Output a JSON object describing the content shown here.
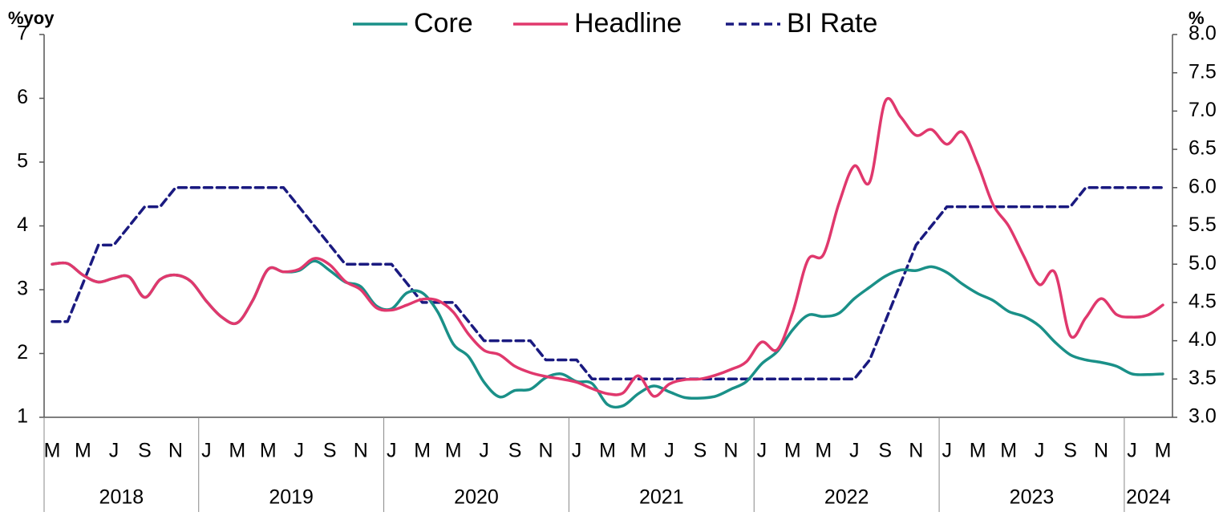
{
  "chart_data": {
    "type": "line",
    "y_label": "%yoy",
    "y2_label": "%",
    "categories": [
      "M",
      null,
      "M",
      null,
      "J",
      null,
      "S",
      null,
      "N",
      null,
      "J",
      null,
      "M",
      null,
      "M",
      null,
      "J",
      null,
      "S",
      null,
      "N",
      null,
      "J",
      null,
      "M",
      null,
      "M",
      null,
      "J",
      null,
      "S",
      null,
      "N",
      null,
      "J",
      null,
      "M",
      null,
      "M",
      null,
      "J",
      null,
      "S",
      null,
      "N",
      null,
      "J",
      null,
      "M",
      null,
      "M",
      null,
      "J",
      null,
      "S",
      null,
      "N",
      null,
      "J",
      null,
      "M",
      null,
      "M",
      null,
      "J",
      null,
      "S",
      null,
      "N",
      null,
      "J",
      null,
      "M"
    ],
    "category_years": [
      "2018",
      "2018",
      "2018",
      "2018",
      "2018",
      "2018",
      "2018",
      "2018",
      "2018",
      "2018",
      "2019",
      "2019",
      "2019",
      "2019",
      "2019",
      "2019",
      "2019",
      "2019",
      "2019",
      "2019",
      "2019",
      "2019",
      "2020",
      "2020",
      "2020",
      "2020",
      "2020",
      "2020",
      "2020",
      "2020",
      "2020",
      "2020",
      "2020",
      "2020",
      "2021",
      "2021",
      "2021",
      "2021",
      "2021",
      "2021",
      "2021",
      "2021",
      "2021",
      "2021",
      "2021",
      "2021",
      "2022",
      "2022",
      "2022",
      "2022",
      "2022",
      "2022",
      "2022",
      "2022",
      "2022",
      "2022",
      "2022",
      "2022",
      "2023",
      "2023",
      "2023",
      "2023",
      "2023",
      "2023",
      "2023",
      "2023",
      "2023",
      "2023",
      "2023",
      "2023",
      "2024",
      "2024",
      "2024"
    ],
    "series": [
      {
        "name": "Core",
        "color": "#1a9088",
        "values": [
          3.4,
          3.41,
          3.23,
          3.12,
          3.18,
          3.2,
          2.88,
          3.16,
          3.23,
          3.13,
          2.82,
          2.57,
          2.48,
          2.83,
          3.32,
          3.28,
          3.3,
          3.45,
          3.3,
          3.12,
          3.05,
          2.75,
          2.7,
          2.95,
          2.95,
          2.65,
          2.15,
          1.95,
          1.55,
          1.32,
          1.42,
          1.44,
          1.62,
          1.68,
          1.56,
          1.53,
          1.2,
          1.18,
          1.37,
          1.49,
          1.4,
          1.31,
          1.3,
          1.33,
          1.44,
          1.56,
          1.84,
          2.03,
          2.37,
          2.6,
          2.58,
          2.63,
          2.86,
          3.04,
          3.21,
          3.31,
          3.3,
          3.36,
          3.27,
          3.09,
          2.94,
          2.83,
          2.66,
          2.58,
          2.43,
          2.18,
          1.98,
          1.9,
          1.86,
          1.8,
          1.68,
          1.67,
          1.68
        ]
      },
      {
        "name": "Headline",
        "color": "#e0386d",
        "values": [
          3.4,
          3.41,
          3.23,
          3.12,
          3.18,
          3.2,
          2.88,
          3.16,
          3.23,
          3.13,
          2.82,
          2.57,
          2.48,
          2.83,
          3.32,
          3.28,
          3.32,
          3.49,
          3.39,
          3.13,
          3.0,
          2.72,
          2.68,
          2.76,
          2.85,
          2.83,
          2.65,
          2.3,
          2.05,
          1.98,
          1.8,
          1.7,
          1.64,
          1.6,
          1.55,
          1.45,
          1.37,
          1.38,
          1.65,
          1.33,
          1.52,
          1.59,
          1.6,
          1.66,
          1.75,
          1.87,
          2.18,
          2.06,
          2.64,
          3.47,
          3.55,
          4.35,
          4.94,
          4.69,
          5.95,
          5.71,
          5.42,
          5.51,
          5.28,
          5.47,
          4.97,
          4.33,
          4.0,
          3.52,
          3.08,
          3.27,
          2.28,
          2.56,
          2.86,
          2.61,
          2.57,
          2.6,
          2.76
        ]
      },
      {
        "name": "BI Rate",
        "color": "#1a1a80",
        "dashed": true,
        "axis": "y2",
        "values": [
          4.25,
          4.25,
          4.75,
          5.25,
          5.25,
          5.5,
          5.75,
          5.75,
          6,
          6,
          6,
          6,
          6,
          6,
          6,
          6,
          5.75,
          5.5,
          5.25,
          5,
          5,
          5,
          5,
          4.75,
          4.5,
          4.5,
          4.5,
          4.25,
          4,
          4,
          4,
          4,
          3.75,
          3.75,
          3.75,
          3.5,
          3.5,
          3.5,
          3.5,
          3.5,
          3.5,
          3.5,
          3.5,
          3.5,
          3.5,
          3.5,
          3.5,
          3.5,
          3.5,
          3.5,
          3.5,
          3.5,
          3.5,
          3.75,
          4.25,
          4.75,
          5.25,
          5.5,
          5.75,
          5.75,
          5.75,
          5.75,
          5.75,
          5.75,
          5.75,
          5.75,
          5.75,
          6,
          6,
          6,
          6,
          6,
          6
        ]
      }
    ],
    "ylim": [
      1,
      7
    ],
    "yticks": [
      1,
      2,
      3,
      4,
      5,
      6,
      7
    ],
    "y2lim": [
      3,
      8
    ],
    "y2ticks": [
      {
        "value": 3,
        "label": "3.0"
      },
      3.5,
      {
        "value": 4,
        "label": "4.0"
      },
      4.5,
      {
        "value": 5,
        "label": "5.0"
      },
      5.5,
      {
        "value": 6,
        "label": "6.0"
      },
      6.5,
      {
        "value": 7,
        "label": "7.0"
      },
      7.5,
      {
        "value": 8,
        "label": "8.0"
      }
    ],
    "legend": "top",
    "grid": false
  }
}
